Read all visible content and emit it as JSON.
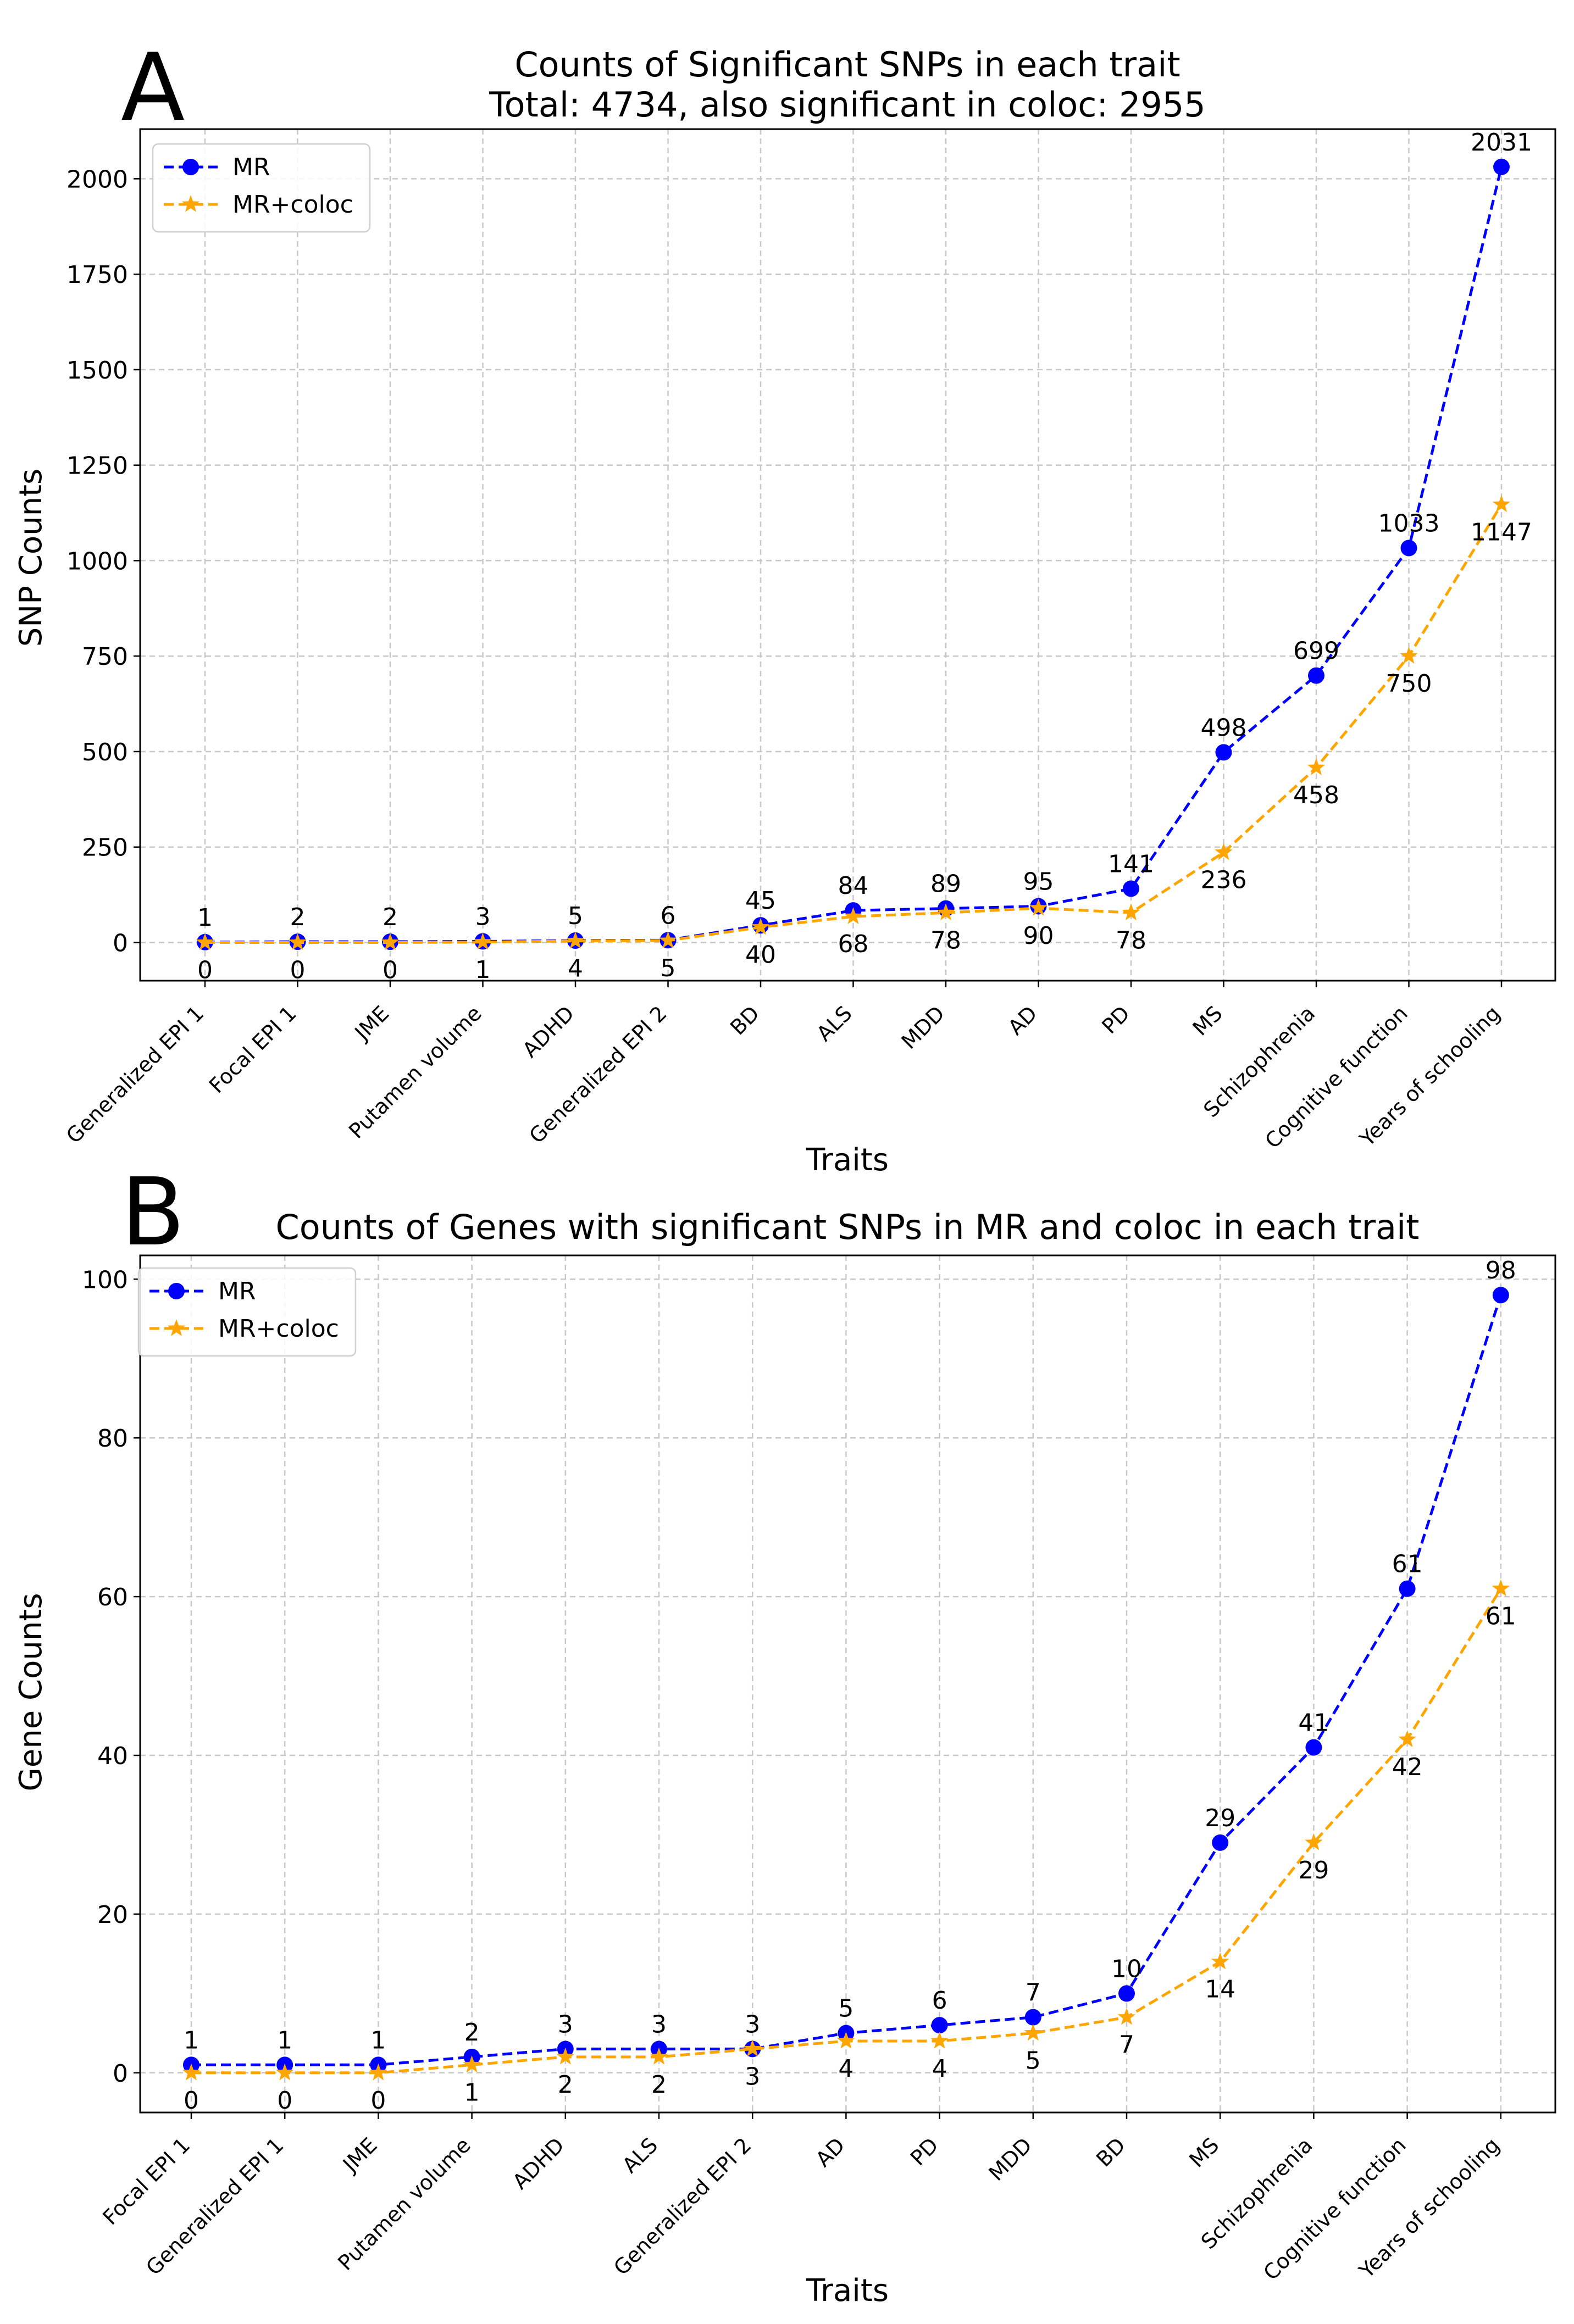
{
  "chart_data": [
    {
      "panel_label": "A",
      "type": "line",
      "title": "Counts of Significant SNPs in each trait",
      "subtitle": "Total: 4734, also significant in coloc: 2955",
      "xlabel": "Traits",
      "ylabel": "SNP Counts",
      "ylim": [
        -100,
        2130
      ],
      "yticks": [
        0,
        250,
        500,
        750,
        1000,
        1250,
        1500,
        1750,
        2000
      ],
      "grid": true,
      "legend_position": "top-left",
      "categories": [
        "Generalized EPI 1",
        "Focal EPI 1",
        "JME",
        "Putamen volume",
        "ADHD",
        "Generalized EPI 2",
        "BD",
        "ALS",
        "MDD",
        "AD",
        "PD",
        "MS",
        "Schizophrenia",
        "Cognitive function",
        "Years of schooling"
      ],
      "series": [
        {
          "name": "MR",
          "color": "#0000ff",
          "marker": "circle",
          "values": [
            1,
            2,
            2,
            3,
            5,
            6,
            45,
            84,
            89,
            95,
            141,
            498,
            699,
            1033,
            2031
          ]
        },
        {
          "name": "MR+coloc",
          "color": "#ffa500",
          "marker": "star",
          "values": [
            0,
            0,
            0,
            1,
            4,
            5,
            40,
            68,
            78,
            90,
            78,
            236,
            458,
            750,
            1147
          ]
        }
      ]
    },
    {
      "panel_label": "B",
      "type": "line",
      "title": "Counts of Genes with significant SNPs in MR and coloc in each trait",
      "xlabel": "Traits",
      "ylabel": "Gene Counts",
      "ylim": [
        -5,
        103
      ],
      "yticks": [
        0,
        20,
        40,
        60,
        80,
        100
      ],
      "grid": true,
      "legend_position": "top-left",
      "categories": [
        "Focal EPI 1",
        "Generalized EPI 1",
        "JME",
        "Putamen volume",
        "ADHD",
        "ALS",
        "Generalized EPI 2",
        "AD",
        "PD",
        "MDD",
        "BD",
        "MS",
        "Schizophrenia",
        "Cognitive function",
        "Years of schooling"
      ],
      "series": [
        {
          "name": "MR",
          "color": "#0000ff",
          "marker": "circle",
          "values": [
            1,
            1,
            1,
            2,
            3,
            3,
            3,
            5,
            6,
            7,
            10,
            29,
            41,
            61,
            98
          ]
        },
        {
          "name": "MR+coloc",
          "color": "#ffa500",
          "marker": "star",
          "values": [
            0,
            0,
            0,
            1,
            2,
            2,
            3,
            4,
            4,
            5,
            7,
            14,
            29,
            42,
            61
          ]
        }
      ]
    }
  ]
}
